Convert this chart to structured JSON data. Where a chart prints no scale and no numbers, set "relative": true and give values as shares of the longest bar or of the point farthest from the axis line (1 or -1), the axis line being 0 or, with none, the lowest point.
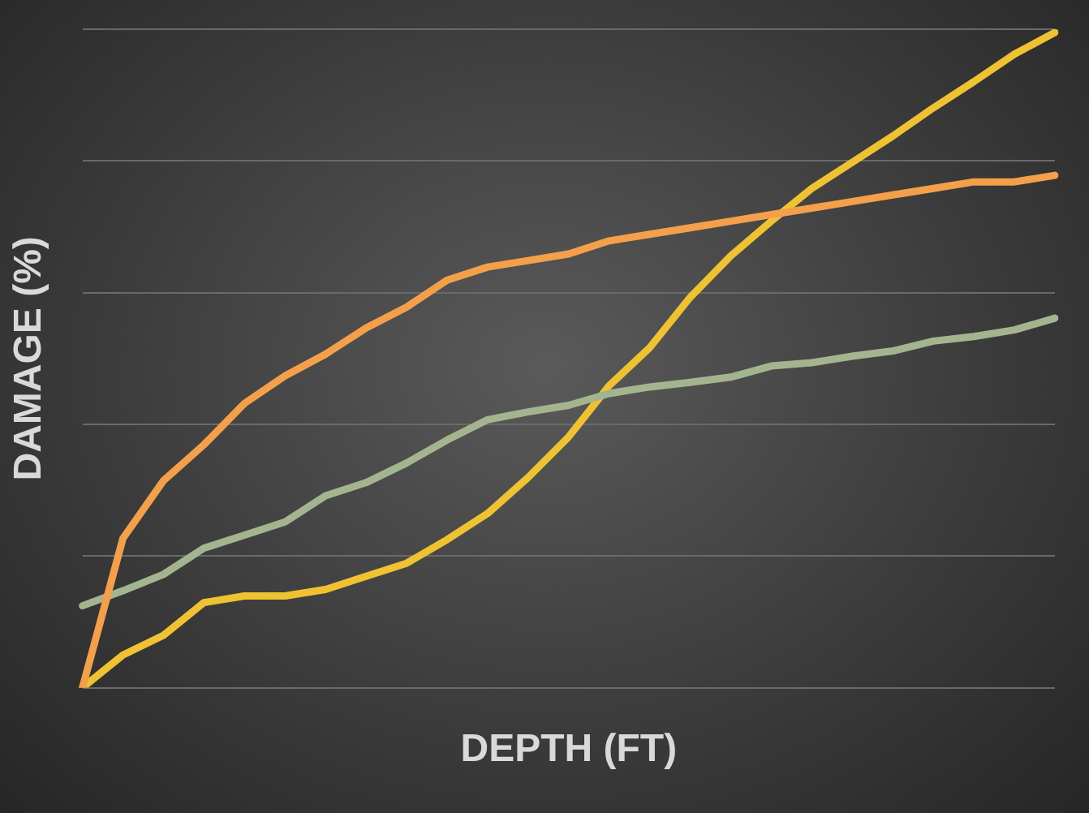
{
  "chart_data": {
    "type": "line",
    "xlabel": "DEPTH (FT)",
    "ylabel": "DAMAGE (%)",
    "relative": true,
    "grid": "y",
    "legend": false,
    "marker": "none",
    "line_style": "solid",
    "categories": [
      null,
      null,
      null,
      null,
      null,
      null,
      null,
      null,
      null,
      null,
      null,
      null,
      null,
      null,
      null,
      null,
      null,
      null,
      null,
      null,
      null,
      null,
      null,
      null,
      null
    ],
    "series": [
      {
        "color": "#f4a04a",
        "values": [
          0,
          0.228,
          0.316,
          0.371,
          0.434,
          0.476,
          0.509,
          0.549,
          0.581,
          0.622,
          0.642,
          0.652,
          0.662,
          0.682,
          0.692,
          0.702,
          0.712,
          0.722,
          0.732,
          0.742,
          0.752,
          0.762,
          0.772,
          0.772,
          0.782
        ]
      },
      {
        "color": "#a3b58e",
        "values": [
          0.125,
          0.148,
          0.173,
          0.213,
          0.233,
          0.253,
          0.293,
          0.313,
          0.343,
          0.378,
          0.409,
          0.421,
          0.431,
          0.449,
          0.459,
          0.466,
          0.474,
          0.491,
          0.496,
          0.506,
          0.514,
          0.529,
          0.536,
          0.546,
          0.564
        ]
      },
      {
        "color": "#efc232",
        "values": [
          0,
          0.05,
          0.08,
          0.13,
          0.14,
          0.14,
          0.15,
          0.17,
          0.19,
          0.226,
          0.266,
          0.321,
          0.383,
          0.461,
          0.519,
          0.596,
          0.659,
          0.712,
          0.762,
          0.802,
          0.842,
          0.885,
          0.925,
          0.967,
          1
        ]
      }
    ]
  }
}
